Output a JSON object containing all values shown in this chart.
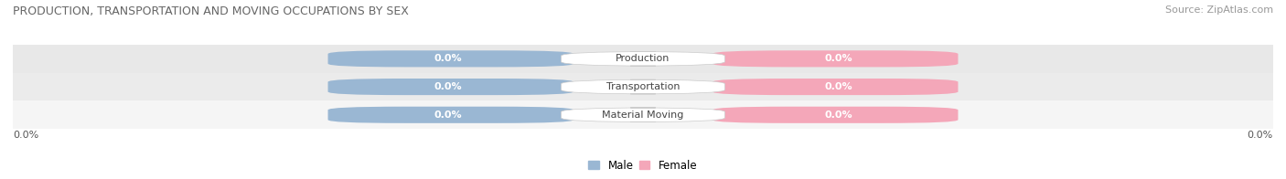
{
  "title": "PRODUCTION, TRANSPORTATION AND MOVING OCCUPATIONS BY SEX",
  "source_text": "Source: ZipAtlas.com",
  "categories": [
    "Production",
    "Transportation",
    "Material Moving"
  ],
  "male_values": [
    0.0,
    0.0,
    0.0
  ],
  "female_values": [
    0.0,
    0.0,
    0.0
  ],
  "male_color": "#9ab7d3",
  "female_color": "#f4a7b9",
  "bar_bg_color_left": "#dce8f0",
  "bar_bg_color_right": "#f9d5e0",
  "male_label": "Male",
  "female_label": "Female",
  "axis_label_left": "0.0%",
  "axis_label_right": "0.0%",
  "title_fontsize": 9,
  "source_fontsize": 8,
  "row_bg_colors": [
    "#f5f5f5",
    "#ebebeb",
    "#e8e8e8"
  ],
  "center_label_color": "#444444",
  "val_label_color_male": "white",
  "val_label_color_female": "white"
}
